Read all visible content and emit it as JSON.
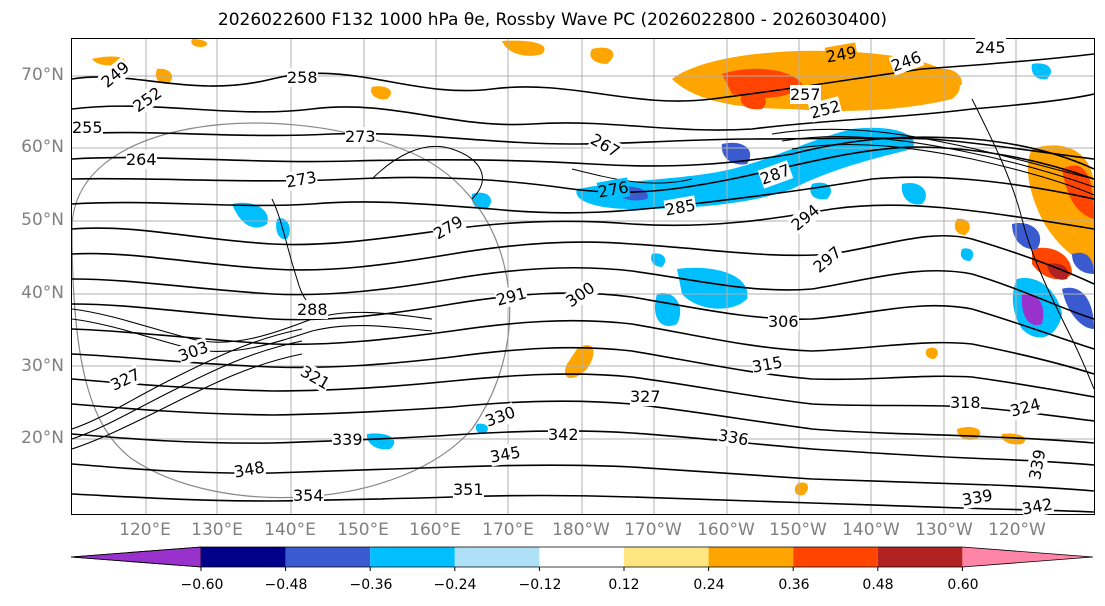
{
  "title": "2026022600 F132 1000 hPa θe, Rossby Wave PC (2026022800 - 2026030400)",
  "axes": {
    "lat_labels": [
      "70°N",
      "60°N",
      "50°N",
      "40°N",
      "30°N",
      "20°N"
    ],
    "lon_labels": [
      "120°E",
      "130°E",
      "140°E",
      "150°E",
      "160°E",
      "170°E",
      "180°W",
      "170°W",
      "160°W",
      "150°W",
      "140°W",
      "130°W",
      "120°W"
    ]
  },
  "colorbar": {
    "tick_labels": [
      "−0.60",
      "−0.48",
      "−0.36",
      "−0.24",
      "−0.12",
      "0.12",
      "0.24",
      "0.36",
      "0.48",
      "0.60"
    ],
    "colors": [
      "#9932cc",
      "#00008b",
      "#3a5bd0",
      "#00bfff",
      "#aee0f8",
      "#ffffff",
      "#ffe680",
      "#ffa500",
      "#ff4500",
      "#b22222",
      "#ff85a8"
    ]
  },
  "contour_labels": [
    "249",
    "252",
    "258",
    "255",
    "264",
    "273",
    "273",
    "279",
    "288",
    "291",
    "300",
    "306",
    "315",
    "327",
    "303",
    "321",
    "327",
    "330",
    "339",
    "342",
    "345",
    "336",
    "348",
    "354",
    "351",
    "318",
    "324",
    "339",
    "339",
    "342",
    "249",
    "246",
    "245",
    "252",
    "257",
    "267",
    "276",
    "285",
    "294",
    "297",
    "287"
  ],
  "colors": {
    "contour": "#000000",
    "grid": "#b0b0b0",
    "label_gray": "#808080"
  }
}
